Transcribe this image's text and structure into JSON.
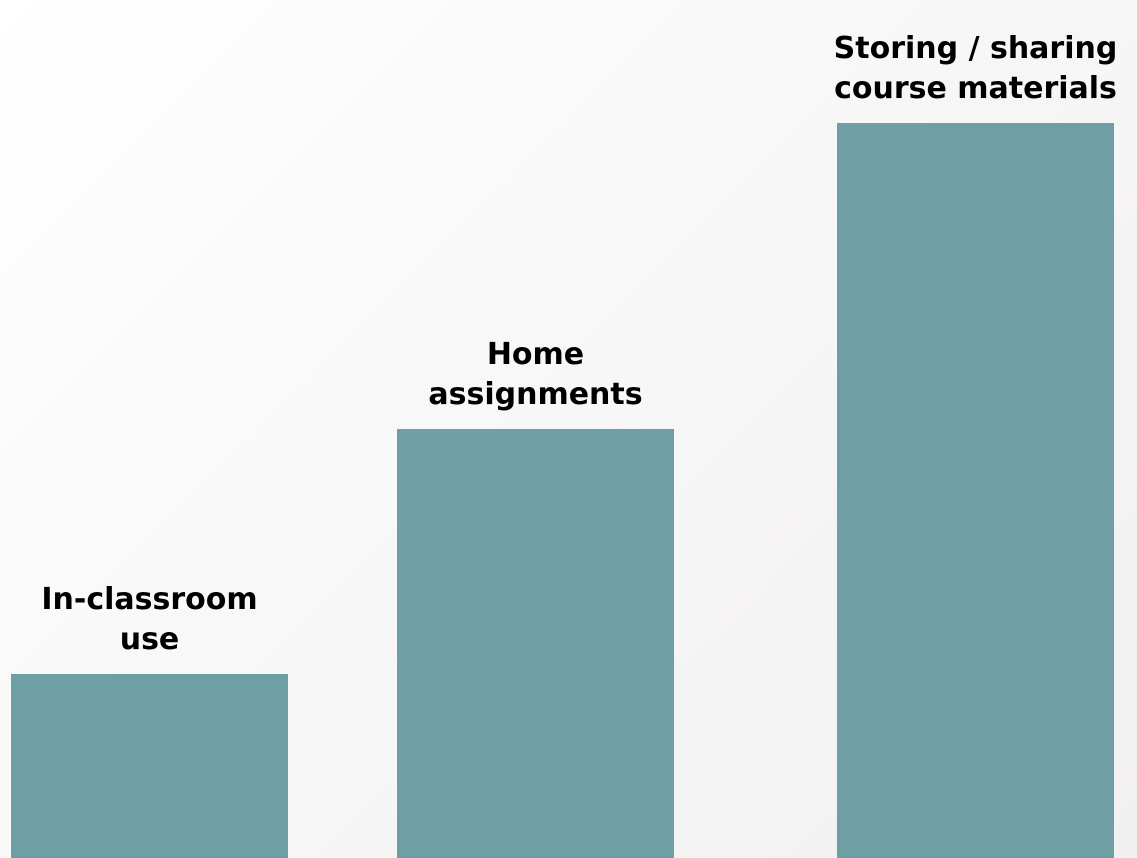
{
  "chart_data": {
    "type": "bar",
    "categories": [
      "In-classroom\nuse",
      "Home\nassignments",
      "Storing / sharing\ncourse materials"
    ],
    "values": [
      24,
      56,
      96
    ],
    "ylim": [
      0,
      112
    ],
    "xlabel": "",
    "ylabel": "",
    "grid": false,
    "legend": "none",
    "bar_color": "#6d9fa4"
  }
}
